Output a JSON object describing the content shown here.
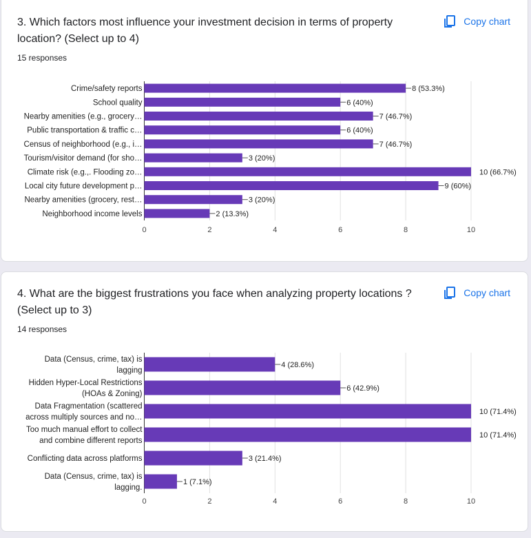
{
  "questions": [
    {
      "title": "3. Which factors most influence your investment decision in terms of property location? (Select up to 4)",
      "responses": "15 responses",
      "copy_label": "Copy chart"
    },
    {
      "title": "4. What are the biggest frustrations you face when analyzing property locations ? (Select up to 3)",
      "responses": "14 responses",
      "copy_label": "Copy chart"
    }
  ],
  "colors": {
    "bar": "#673ab7",
    "grid": "#e0e0e0",
    "accent": "#1a73e8"
  },
  "chart_data": [
    {
      "type": "bar",
      "orientation": "horizontal",
      "categories": [
        [
          "Crime/safety reports"
        ],
        [
          "School quality"
        ],
        [
          "Nearby amenities (e.g., grocery…"
        ],
        [
          "Public transportation & traffic c…"
        ],
        [
          "Census of neighborhood (e.g., i…"
        ],
        [
          "Tourism/visitor demand (for sho…"
        ],
        [
          "Climate risk (e.g.,. Flooding zo…"
        ],
        [
          "Local city future development p…"
        ],
        [
          "Nearby amenities (grocery, rest…"
        ],
        [
          "Neighborhood income levels"
        ]
      ],
      "values": [
        8,
        6,
        7,
        6,
        7,
        3,
        10,
        9,
        3,
        2
      ],
      "labels": [
        "8 (53.3%)",
        "6 (40%)",
        "7 (46.7%)",
        "6 (40%)",
        "7 (46.7%)",
        "3 (20%)",
        "10 (66.7%)",
        "9 (60%)",
        "3 (20%)",
        "2 (13.3%)"
      ],
      "xlim": [
        0,
        10
      ],
      "xticks": [
        "0",
        "2",
        "4",
        "6",
        "8",
        "10"
      ],
      "grid": true
    },
    {
      "type": "bar",
      "orientation": "horizontal",
      "categories": [
        [
          "Data (Census, crime, tax) is",
          "lagging"
        ],
        [
          "Hidden Hyper-Local Restrictions",
          "(HOAs & Zoning)"
        ],
        [
          "Data Fragmentation (scattered",
          "across multiply sources and no…"
        ],
        [
          "Too much manual effort to collect",
          "and combine different reports"
        ],
        [
          "Conflicting data across platforms"
        ],
        [
          "Data (Census, crime, tax) is",
          "lagging."
        ]
      ],
      "values": [
        4,
        6,
        10,
        10,
        3,
        1
      ],
      "labels": [
        "4 (28.6%)",
        "6 (42.9%)",
        "10 (71.4%)",
        "10 (71.4%)",
        "3 (21.4%)",
        "1 (7.1%)"
      ],
      "xlim": [
        0,
        10
      ],
      "xticks": [
        "0",
        "2",
        "4",
        "6",
        "8",
        "10"
      ],
      "grid": true
    }
  ]
}
